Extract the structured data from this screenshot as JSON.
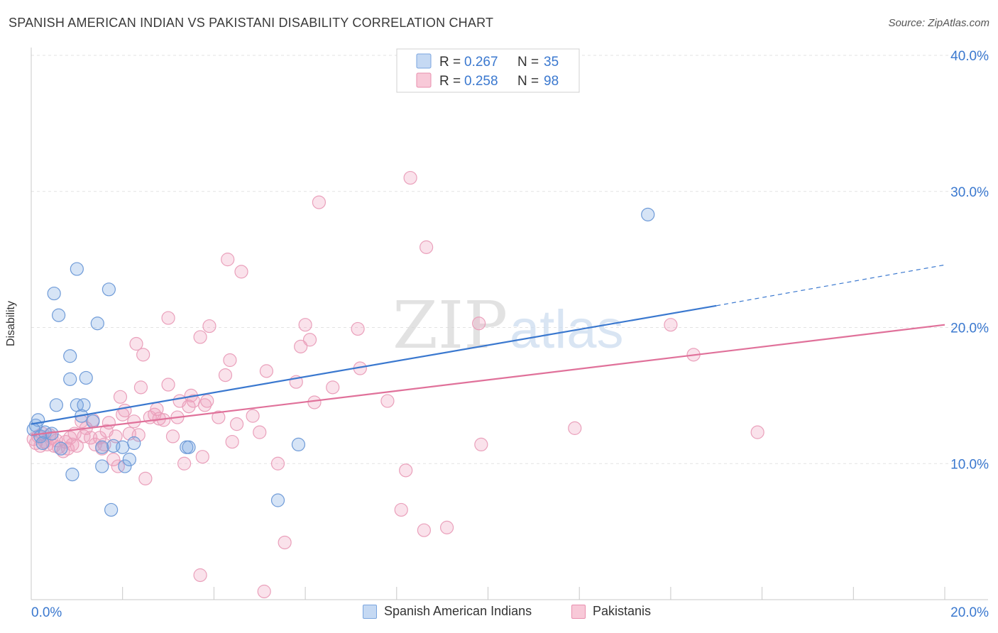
{
  "title": "SPANISH AMERICAN INDIAN VS PAKISTANI DISABILITY CORRELATION CHART",
  "source": "Source: ZipAtlas.com",
  "watermark": {
    "zip": "ZIP",
    "atlas": "atlas"
  },
  "colors": {
    "blue": "#5b8fd6",
    "blue_line": "#3a78cf",
    "pink": "#e98fae",
    "pink_line": "#e0719a",
    "value_text": "#3a78cf"
  },
  "chart_data": {
    "type": "scatter",
    "xlabel": "",
    "ylabel": "Disability",
    "xlim": [
      0,
      20
    ],
    "ylim": [
      0,
      40
    ],
    "x_tick_labels": [
      {
        "value": 0,
        "label": "0.0%"
      },
      {
        "value": 20,
        "label": "20.0%"
      }
    ],
    "y_tick_labels": [
      {
        "value": 10,
        "label": "10.0%"
      },
      {
        "value": 20,
        "label": "20.0%"
      },
      {
        "value": 30,
        "label": "30.0%"
      },
      {
        "value": 40,
        "label": "40.0%"
      }
    ],
    "legend_top": [
      {
        "r_label": "R =",
        "r_value": "0.267",
        "n_label": "N =",
        "n_value": "35"
      },
      {
        "r_label": "R =",
        "r_value": "0.258",
        "n_label": "N =",
        "n_value": "98"
      }
    ],
    "series": [
      {
        "name": "Spanish American Indians",
        "color": "blue",
        "trend": {
          "x0": 0,
          "y0": 12.9,
          "x1": 15,
          "y1": 21.6,
          "dashed_to_x": 20,
          "dashed_to_y": 24.6
        },
        "points": [
          [
            0.1,
            12.8
          ],
          [
            0.15,
            13.2
          ],
          [
            0.2,
            12.0
          ],
          [
            0.3,
            12.3
          ],
          [
            0.45,
            12.2
          ],
          [
            0.5,
            22.5
          ],
          [
            0.55,
            14.3
          ],
          [
            0.6,
            20.9
          ],
          [
            0.65,
            11.1
          ],
          [
            0.85,
            17.9
          ],
          [
            0.9,
            9.2
          ],
          [
            0.85,
            16.2
          ],
          [
            1.0,
            24.3
          ],
          [
            1.0,
            14.3
          ],
          [
            1.1,
            13.5
          ],
          [
            1.15,
            14.3
          ],
          [
            1.2,
            16.3
          ],
          [
            1.35,
            13.1
          ],
          [
            1.45,
            20.3
          ],
          [
            1.55,
            9.8
          ],
          [
            1.55,
            11.2
          ],
          [
            1.7,
            22.8
          ],
          [
            1.75,
            6.6
          ],
          [
            1.8,
            11.3
          ],
          [
            2.0,
            11.2
          ],
          [
            2.05,
            9.8
          ],
          [
            2.15,
            10.3
          ],
          [
            2.25,
            11.5
          ],
          [
            3.4,
            11.2
          ],
          [
            3.45,
            11.2
          ],
          [
            5.4,
            7.3
          ],
          [
            5.85,
            11.4
          ],
          [
            13.5,
            28.3
          ],
          [
            0.05,
            12.5
          ],
          [
            0.25,
            11.5
          ]
        ]
      },
      {
        "name": "Pakistanis",
        "color": "pink",
        "trend": {
          "x0": 0,
          "y0": 12.1,
          "x1": 20,
          "y1": 20.2
        },
        "points": [
          [
            0.05,
            11.8
          ],
          [
            0.1,
            11.5
          ],
          [
            0.15,
            12.0
          ],
          [
            0.2,
            11.3
          ],
          [
            0.25,
            12.2
          ],
          [
            0.3,
            11.6
          ],
          [
            0.35,
            11.4
          ],
          [
            0.4,
            12.1
          ],
          [
            0.45,
            11.9
          ],
          [
            0.5,
            11.3
          ],
          [
            0.55,
            11.7
          ],
          [
            0.6,
            11.2
          ],
          [
            0.7,
            10.9
          ],
          [
            0.75,
            11.6
          ],
          [
            0.8,
            11.1
          ],
          [
            0.85,
            11.9
          ],
          [
            0.9,
            11.4
          ],
          [
            0.95,
            12.2
          ],
          [
            1.0,
            11.3
          ],
          [
            1.1,
            13.1
          ],
          [
            1.15,
            12.0
          ],
          [
            1.2,
            12.6
          ],
          [
            1.3,
            11.9
          ],
          [
            1.35,
            13.2
          ],
          [
            1.4,
            11.4
          ],
          [
            1.5,
            11.9
          ],
          [
            1.55,
            11.1
          ],
          [
            1.6,
            11.4
          ],
          [
            1.65,
            12.4
          ],
          [
            1.7,
            13.0
          ],
          [
            1.8,
            10.3
          ],
          [
            1.85,
            12.0
          ],
          [
            1.9,
            9.8
          ],
          [
            1.95,
            14.9
          ],
          [
            2.0,
            13.6
          ],
          [
            2.05,
            13.9
          ],
          [
            2.15,
            12.2
          ],
          [
            2.25,
            13.1
          ],
          [
            2.3,
            18.8
          ],
          [
            2.35,
            12.1
          ],
          [
            2.4,
            15.6
          ],
          [
            2.45,
            18.0
          ],
          [
            2.5,
            8.9
          ],
          [
            2.6,
            13.4
          ],
          [
            2.7,
            13.6
          ],
          [
            2.75,
            14.0
          ],
          [
            2.8,
            13.3
          ],
          [
            2.9,
            13.2
          ],
          [
            3.0,
            20.7
          ],
          [
            3.0,
            15.8
          ],
          [
            3.1,
            12.0
          ],
          [
            3.2,
            13.4
          ],
          [
            3.25,
            14.6
          ],
          [
            3.35,
            10.0
          ],
          [
            3.45,
            14.2
          ],
          [
            3.5,
            15.0
          ],
          [
            3.55,
            14.6
          ],
          [
            3.7,
            19.3
          ],
          [
            3.75,
            10.5
          ],
          [
            3.8,
            14.3
          ],
          [
            3.85,
            14.6
          ],
          [
            3.9,
            20.1
          ],
          [
            4.1,
            13.4
          ],
          [
            4.25,
            16.5
          ],
          [
            4.3,
            25.0
          ],
          [
            4.35,
            17.6
          ],
          [
            4.4,
            11.6
          ],
          [
            4.5,
            12.9
          ],
          [
            4.6,
            24.1
          ],
          [
            4.85,
            13.5
          ],
          [
            5.0,
            12.3
          ],
          [
            5.15,
            16.8
          ],
          [
            5.4,
            10.0
          ],
          [
            5.55,
            4.2
          ],
          [
            5.8,
            16.0
          ],
          [
            5.9,
            18.6
          ],
          [
            6.0,
            20.2
          ],
          [
            6.1,
            19.1
          ],
          [
            6.2,
            14.5
          ],
          [
            6.3,
            29.2
          ],
          [
            6.6,
            15.6
          ],
          [
            7.15,
            19.9
          ],
          [
            7.2,
            17.0
          ],
          [
            7.8,
            14.6
          ],
          [
            8.1,
            6.6
          ],
          [
            8.2,
            9.5
          ],
          [
            8.3,
            31.0
          ],
          [
            8.6,
            5.1
          ],
          [
            8.65,
            25.9
          ],
          [
            9.1,
            5.3
          ],
          [
            9.8,
            20.3
          ],
          [
            9.85,
            11.4
          ],
          [
            11.9,
            12.6
          ],
          [
            14.0,
            20.2
          ],
          [
            14.5,
            18.0
          ],
          [
            15.9,
            12.3
          ],
          [
            3.7,
            1.8
          ],
          [
            5.1,
            0.6
          ]
        ]
      }
    ]
  },
  "legend_bottom": [
    {
      "label": "Spanish American Indians"
    },
    {
      "label": "Pakistanis"
    }
  ]
}
